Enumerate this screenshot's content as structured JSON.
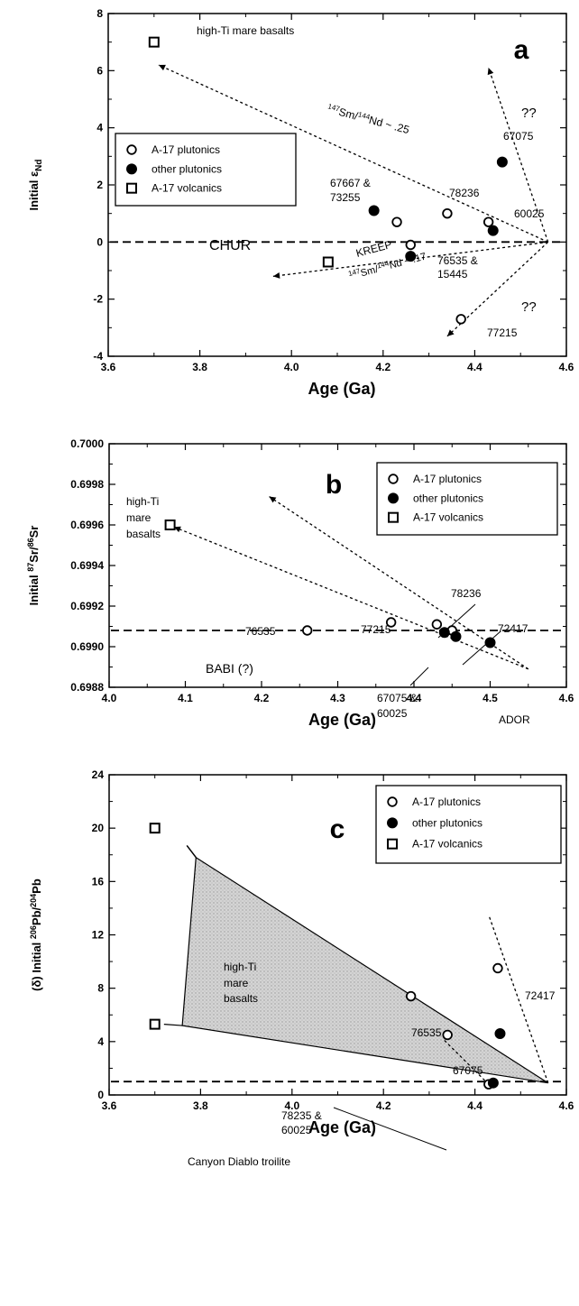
{
  "chart_data": [
    {
      "panel": "a",
      "type": "scatter",
      "xlabel": "Age (Ga)",
      "ylabel": "Initial εNd",
      "xlim": [
        3.6,
        4.6
      ],
      "ylim": [
        -4,
        8
      ],
      "xticks": [
        "3.6",
        "3.8",
        "4.0",
        "4.2",
        "4.4",
        "4.6"
      ],
      "yticks": [
        "-4",
        "-2",
        "0",
        "2",
        "4",
        "6",
        "8"
      ],
      "legend": [
        "A-17 plutonics",
        "other plutonics",
        "A-17 volcanics"
      ],
      "legend_position": "middle-left",
      "series": [
        {
          "name": "A-17 plutonics",
          "marker": "open-circle",
          "x": [
            4.23,
            4.26,
            4.34,
            4.43,
            4.37
          ],
          "y": [
            0.7,
            -0.1,
            1.0,
            0.7,
            -2.7
          ]
        },
        {
          "name": "other plutonics",
          "marker": "filled-circle",
          "x": [
            4.18,
            4.26,
            4.44,
            4.46
          ],
          "y": [
            1.1,
            -0.5,
            0.4,
            2.8
          ]
        },
        {
          "name": "A-17 volcanics",
          "marker": "open-square",
          "x": [
            3.7,
            4.08
          ],
          "y": [
            7.0,
            -0.7
          ]
        }
      ],
      "annotations": [
        "high-Ti mare basalts",
        "147Sm/144Nd ~ .25",
        "??",
        "67075",
        "67667 &",
        "73255",
        "78236",
        "60025",
        "CHUR",
        "KREEP",
        "147Sm/144Nd ~ .17",
        "76535 &",
        "15445",
        "??",
        "77215"
      ],
      "reference_lines": [
        {
          "label": "CHUR",
          "y": 0
        }
      ],
      "trend_lines": [
        {
          "from": [
            4.56,
            0
          ],
          "to": [
            3.71,
            6.2
          ]
        },
        {
          "from": [
            4.56,
            0
          ],
          "to": [
            3.96,
            -1.2
          ]
        },
        {
          "from": [
            4.56,
            0
          ],
          "to": [
            4.43,
            6.1
          ]
        },
        {
          "from": [
            4.56,
            0
          ],
          "to": [
            4.34,
            -3.3
          ]
        }
      ]
    },
    {
      "panel": "b",
      "type": "scatter",
      "xlabel": "Age (Ga)",
      "ylabel": "Initial 87Sr/86Sr",
      "xlim": [
        4.0,
        4.6
      ],
      "ylim": [
        0.6988,
        0.7
      ],
      "xticks": [
        "4.0",
        "4.1",
        "4.2",
        "4.3",
        "4.4",
        "4.5",
        "4.6"
      ],
      "yticks": [
        "0.6988",
        "0.6990",
        "0.6992",
        "0.6994",
        "0.6996",
        "0.6998",
        "0.7000"
      ],
      "legend": [
        "A-17 plutonics",
        "other plutonics",
        "A-17 volcanics"
      ],
      "legend_position": "top-right",
      "series": [
        {
          "name": "A-17 plutonics",
          "marker": "open-circle",
          "x": [
            4.26,
            4.37,
            4.43,
            4.45
          ],
          "y": [
            0.69908,
            0.69912,
            0.69911,
            0.69908
          ]
        },
        {
          "name": "other plutonics",
          "marker": "filled-circle",
          "x": [
            4.44,
            4.455,
            4.5
          ],
          "y": [
            0.69907,
            0.69905,
            0.69902
          ]
        },
        {
          "name": "A-17 volcanics",
          "marker": "open-square",
          "x": [
            4.08
          ],
          "y": [
            0.6996
          ]
        }
      ],
      "annotations": [
        "high-Ti",
        "mare",
        "basalts",
        "78236",
        "72417",
        "77215",
        "76535",
        "BABI (?)",
        "67075 &",
        "60025",
        "ADOR"
      ],
      "reference_lines": [
        {
          "label": "BABI (?)",
          "y": 0.69908
        }
      ],
      "trend_lines": [
        {
          "from": [
            4.55,
            0.69889
          ],
          "to": [
            4.085,
            0.69959
          ]
        },
        {
          "from": [
            4.55,
            0.69889
          ],
          "to": [
            4.21,
            0.69974
          ]
        }
      ]
    },
    {
      "panel": "c",
      "type": "scatter",
      "xlabel": "Age (Ga)",
      "ylabel": "(δ) Initial 206Pb/204Pb",
      "xlim": [
        3.6,
        4.6
      ],
      "ylim": [
        0,
        24
      ],
      "xticks": [
        "3.6",
        "3.8",
        "4.0",
        "4.2",
        "4.4",
        "4.6"
      ],
      "yticks": [
        "0",
        "4",
        "8",
        "12",
        "16",
        "20",
        "24"
      ],
      "legend": [
        "A-17 plutonics",
        "other plutonics",
        "A-17 volcanics"
      ],
      "legend_position": "top-right",
      "series": [
        {
          "name": "A-17 plutonics",
          "marker": "open-circle",
          "x": [
            4.26,
            4.34,
            4.45,
            4.43
          ],
          "y": [
            7.4,
            4.5,
            9.5,
            0.8
          ]
        },
        {
          "name": "other plutonics",
          "marker": "filled-circle",
          "x": [
            4.455,
            4.44
          ],
          "y": [
            4.6,
            0.9
          ]
        },
        {
          "name": "A-17 volcanics",
          "marker": "open-square",
          "x": [
            3.7,
            3.7
          ],
          "y": [
            20,
            5.3
          ]
        }
      ],
      "annotations": [
        "high-Ti",
        "mare",
        "basalts",
        "76535",
        "72417",
        "67075",
        "78235 &",
        "60025",
        "Canyon Diablo troilite"
      ],
      "reference_lines": [
        {
          "label": "Canyon Diablo troilite",
          "y": 1.0
        }
      ],
      "shaded_region": [
        [
          3.79,
          17.8
        ],
        [
          4.56,
          0.9
        ],
        [
          3.76,
          5.2
        ]
      ]
    }
  ],
  "colors": {
    "ink": "#000000",
    "shade": "#c8c8c8",
    "background": "#ffffff"
  }
}
